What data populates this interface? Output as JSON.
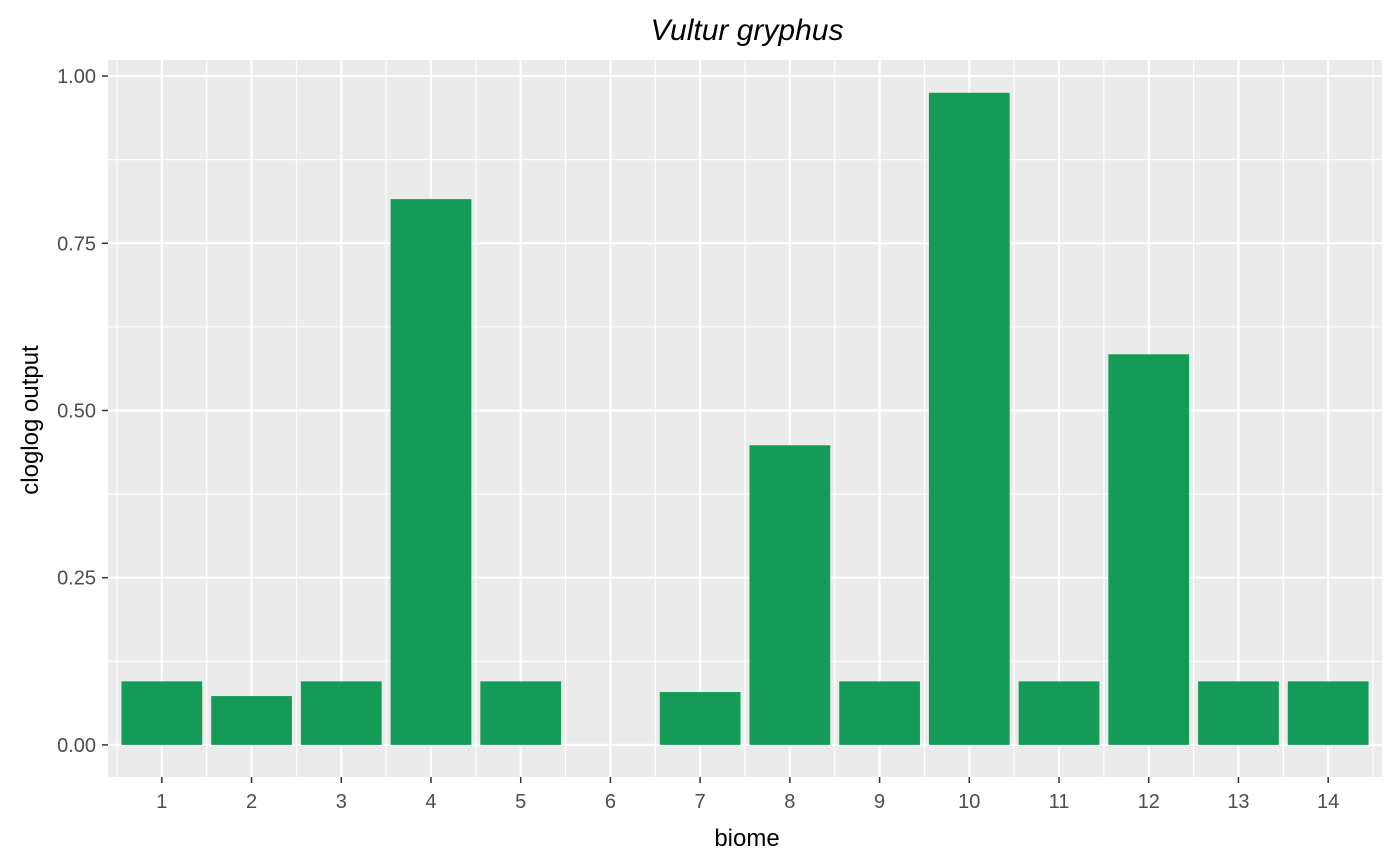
{
  "chart_data": {
    "type": "bar",
    "title": "Vultur gryphus",
    "xlabel": "biome",
    "ylabel": "cloglog output",
    "categories": [
      "1",
      "2",
      "3",
      "4",
      "5",
      "6",
      "7",
      "8",
      "9",
      "10",
      "11",
      "12",
      "13",
      "14"
    ],
    "values": [
      0.095,
      0.073,
      0.095,
      0.816,
      0.095,
      0.0,
      0.079,
      0.448,
      0.095,
      0.975,
      0.095,
      0.584,
      0.095,
      0.095
    ],
    "ylim": [
      -0.048,
      1.024
    ],
    "yticks": [
      0.0,
      0.25,
      0.5,
      0.75,
      1.0
    ],
    "ytick_labels": [
      "0.00",
      "0.25",
      "0.50",
      "0.75",
      "1.00"
    ],
    "grid": true,
    "panel_background": "#ebebeb",
    "grid_color": "#ffffff",
    "bar_color": "#159b58"
  }
}
